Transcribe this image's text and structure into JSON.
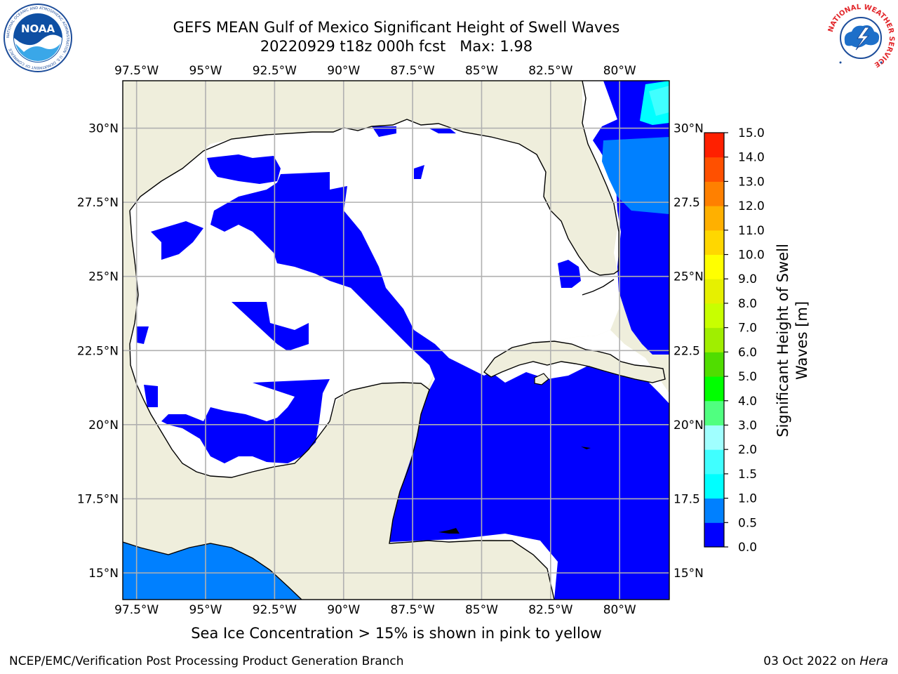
{
  "figure": {
    "title_line1": "GEFS MEAN Gulf of Mexico Significant Height of Swell Waves",
    "title_line2": "20220929 t18z 000h fcst   Max: 1.98",
    "note": "Sea Ice Concentration > 15% is shown in pink to yellow",
    "footer_left": "NCEP/EMC/Verification Post Processing Product Generation Branch",
    "footer_date": "03 Oct 2022 on",
    "footer_host": "Hera"
  },
  "logos": {
    "noaa": {
      "text": "NOAA",
      "ring_text": "NATIONAL OCEANIC AND ATMOSPHERIC ADMINISTRATION · U.S. DEPARTMENT OF COMMERCE",
      "icon": "noaa-logo-icon"
    },
    "nws": {
      "ring_text": "NATIONAL WEATHER SERVICE",
      "icon": "nws-logo-icon"
    }
  },
  "map": {
    "lon_ticks": [
      "97.5°W",
      "95°W",
      "92.5°W",
      "90°W",
      "87.5°W",
      "85°W",
      "82.5°W",
      "80°W"
    ],
    "lat_ticks": [
      "30°N",
      "27.5°N",
      "25°N",
      "22.5°N",
      "20°N",
      "17.5°N",
      "15°N"
    ],
    "lat_ticks_right": [
      "30°N",
      "27.5",
      "25°N",
      "22.5",
      "20°N",
      "17.5",
      "15°N"
    ],
    "lon_values": [
      -97.5,
      -95,
      -92.5,
      -90,
      -87.5,
      -85,
      -82.5,
      -80
    ],
    "lat_values": [
      30,
      27.5,
      25,
      22.5,
      20,
      17.5,
      15
    ],
    "lon_range": [
      -98,
      -78.2
    ],
    "lat_range": [
      14.1,
      31.6
    ],
    "colors": {
      "land": "#efeedc",
      "no_swell": "#ffffff",
      "swell_0_0.5": "#0000ff",
      "swell_0.5_1.0": "#0080ff",
      "swell_1.0_1.5": "#00ffff",
      "swell_1.5_2.0": "#40ffff",
      "grid": "#b0b0b0"
    }
  },
  "colorbar": {
    "label_line1": "Significant Height of Swell",
    "label_line2": "Waves [m]",
    "ticks": [
      "0.0",
      "0.5",
      "1.0",
      "1.5",
      "2.0",
      "3.0",
      "4.0",
      "5.0",
      "6.0",
      "7.0",
      "8.0",
      "9.0",
      "10.0",
      "11.0",
      "12.0",
      "13.0",
      "14.0",
      "15.0"
    ],
    "colors": [
      "#0000ff",
      "#0080ff",
      "#00ffff",
      "#40ffff",
      "#a0ffff",
      "#50ff80",
      "#00ff00",
      "#50dd00",
      "#a0ee00",
      "#c8ff00",
      "#e6f000",
      "#ffff00",
      "#ffd700",
      "#ffb000",
      "#ff8000",
      "#ff5000",
      "#ff2000",
      "#ff0000"
    ]
  }
}
